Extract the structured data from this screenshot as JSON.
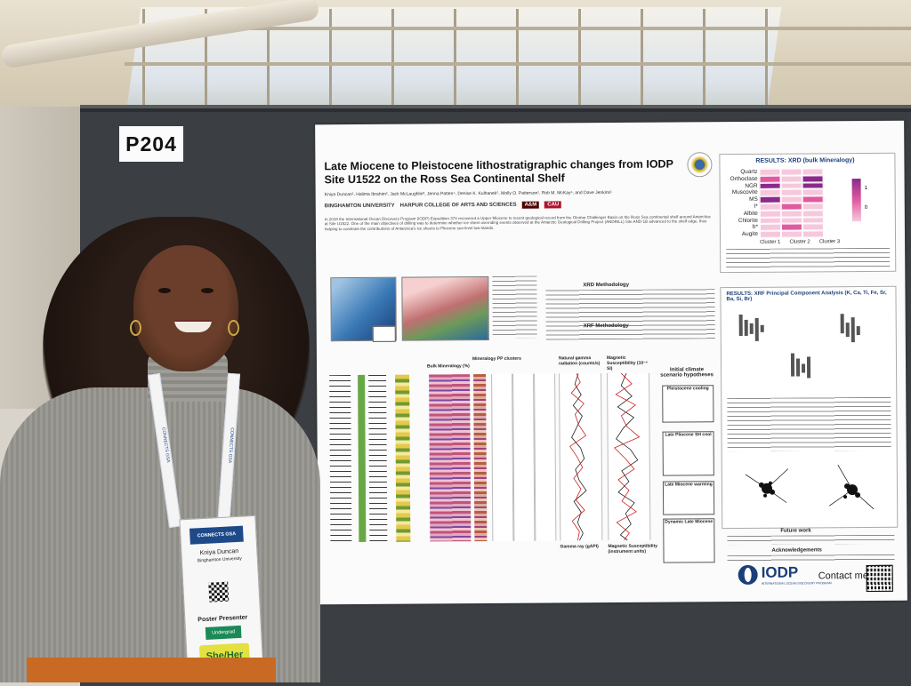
{
  "scene": {
    "board_number": "P204"
  },
  "poster": {
    "title": "Late Miocene to Pleistocene lithostratigraphic changes from IODP Site U1522 on the Ross Sea Continental Shelf",
    "authors": "Kniya Duncan¹, Halima Ibrahim², Jack McLaughlin³, Jenna Patten⁴, Denise K. Kulhanek⁵, Molly O. Patterson¹, Rob M. McKay⁶, and Dave Jenkins¹",
    "logos": [
      "BINGHAMTON UNIVERSITY",
      "HARPUR COLLEGE OF ARTS AND SCIENCES",
      "A&M",
      "CAU"
    ],
    "abstract": "In 2018 the International Ocean Discovery Program (IODP) Expedition 374 recovered a Upper Miocene to recent geological record from the Glomar Challenger Basin on the Ross Sea continental shelf around Antarctica at Site U1522. One of the main objectives of drilling was to determine whether ice sheet overriding events observed at the Antarctic Geological Drilling Project (ANDRILL) Site AND-1B advanced to the shelf edge, thus helping to constrain the contributions of Antarctica's ice sheets to Pliocene sea level low-stands.",
    "sections": {
      "xrd_methodology": "XRD Methodology",
      "xrf_methodology": "XRF Methodology",
      "mineralogy_label": "Bulk Mineralogy (%)",
      "mineralogy_pp": "Mineralogy PP clusters",
      "ngr_label": "Natural gamma radiation (counts/s)",
      "ms_label": "Magnetic Susceptibility (10⁻⁵ SI)",
      "gamma_axis": "Gamma ray (gAPI)",
      "ms_axis": "Magnetic Susceptibility (instrument units)",
      "initial_hypotheses": "Initial climate scenario hypotheses",
      "future_work": "Future work",
      "acknowledgements": "Acknowledgements"
    },
    "hypotheses": [
      "Pleistocene cooling",
      "Late Pliocene SH cool",
      "Late Miocene warming",
      "Dynamic Late Miocene"
    ],
    "heatmap": {
      "title": "RESULTS: XRD (bulk Mineralogy)",
      "rows": [
        "Quartz",
        "Orthoclase",
        "NGR",
        "Muscovite",
        "MS",
        "l*",
        "Albite",
        "Chlorite",
        "b*",
        "Augite"
      ],
      "clusters": [
        "Cluster 1",
        "Cluster 2",
        "Cluster 3"
      ],
      "scale_labels": [
        "1",
        "0"
      ],
      "cells": [
        [
          0.2,
          0.3,
          0.2
        ],
        [
          0.4,
          0.2,
          0.9
        ],
        [
          0.8,
          0.3,
          0.9
        ],
        [
          0.3,
          0.2,
          0.3
        ],
        [
          0.9,
          0.2,
          0.4
        ],
        [
          0.2,
          0.4,
          0.3
        ],
        [
          0.3,
          0.3,
          0.2
        ],
        [
          0.3,
          0.2,
          0.3
        ],
        [
          0.3,
          0.4,
          0.2
        ],
        [
          0.2,
          0.3,
          0.3
        ]
      ],
      "colors": {
        "low": "#f6c8dc",
        "mid": "#e05aa0",
        "high": "#8a2a8a"
      }
    },
    "pca": {
      "title": "RESULTS: XRF Principal Component Analysis (K, Ca, Ti, Fe, Sr, Ba, Si, Br)"
    },
    "footer": {
      "iodp": "IODP",
      "iodp_sub": "INTERNATIONAL OCEAN DISCOVERY PROGRAM",
      "contact": "Contact me:"
    }
  },
  "badge": {
    "event": "CONNECTS GSA",
    "name": "Kniya Duncan",
    "affiliation": "Binghamton University",
    "role": "Poster Presenter",
    "ribbon": "Undergrad",
    "pronoun": "She/Her"
  },
  "lanyard_text": "CONNECTS GSA"
}
